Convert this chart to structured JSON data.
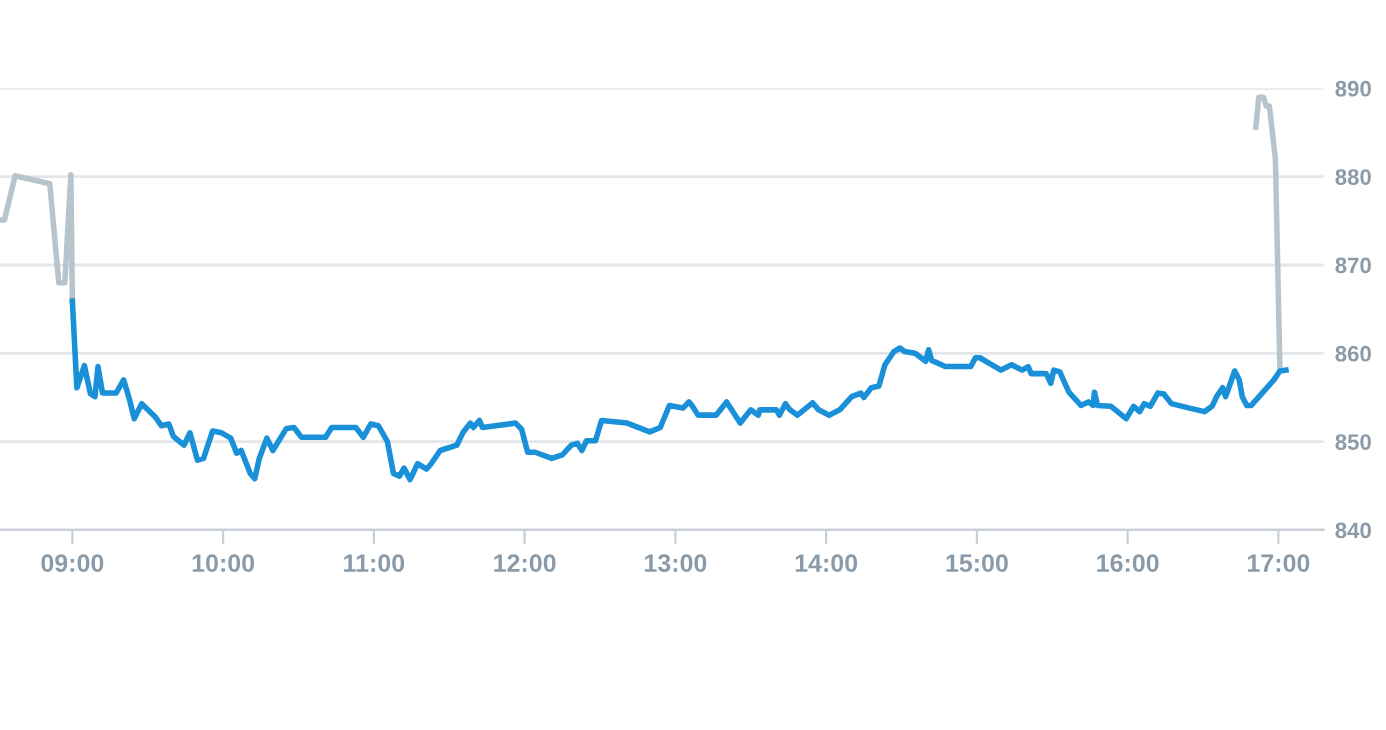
{
  "chart_data": {
    "type": "line",
    "series": [
      {
        "color": "#b8c4cc",
        "x": [
          8.52,
          8.55,
          8.62,
          8.85,
          8.91,
          8.95,
          8.99,
          9.0,
          null,
          16.85,
          16.87,
          16.9,
          16.92,
          16.94,
          16.98,
          17.01
        ],
        "values": [
          875.1,
          875.1,
          880.1,
          879.2,
          868.0,
          868.0,
          880.2,
          865.9,
          null,
          885.6,
          889.0,
          889.0,
          888.0,
          888.0,
          882.0,
          858.3
        ]
      },
      {
        "color": "#1a90d8",
        "x": [
          9.0,
          9.03,
          9.08,
          9.12,
          9.15,
          9.17,
          9.2,
          9.29,
          9.34,
          9.38,
          9.41,
          9.46,
          9.55,
          9.59,
          9.64,
          9.67,
          9.74,
          9.78,
          9.83,
          9.87,
          9.93,
          9.99,
          10.05,
          10.09,
          10.12,
          10.18,
          10.21,
          10.24,
          10.29,
          10.33,
          10.42,
          10.47,
          10.52,
          10.68,
          10.72,
          10.88,
          10.93,
          10.98,
          11.03,
          11.09,
          11.13,
          11.17,
          11.2,
          11.24,
          11.29,
          11.35,
          11.38,
          11.44,
          11.55,
          11.59,
          11.64,
          11.66,
          11.7,
          11.72,
          11.94,
          11.98,
          12.02,
          12.07,
          12.18,
          12.25,
          12.31,
          12.35,
          12.38,
          12.41,
          12.47,
          12.51,
          12.68,
          12.83,
          12.9,
          12.96,
          13.05,
          13.09,
          13.11,
          13.15,
          13.27,
          13.34,
          13.43,
          13.5,
          13.55,
          13.56,
          13.67,
          13.69,
          13.73,
          13.76,
          13.81,
          13.91,
          13.95,
          14.02,
          14.09,
          14.17,
          14.23,
          14.25,
          14.3,
          14.35,
          14.39,
          14.45,
          14.49,
          14.52,
          14.59,
          14.66,
          14.68,
          14.7,
          14.79,
          14.96,
          14.99,
          15.02,
          15.1,
          15.16,
          15.23,
          15.3,
          15.34,
          15.36,
          15.46,
          15.49,
          15.51,
          15.55,
          15.61,
          15.69,
          15.74,
          15.77,
          15.78,
          15.8,
          15.89,
          15.99,
          16.04,
          16.08,
          16.11,
          16.15,
          16.2,
          16.24,
          16.29,
          16.41,
          16.51,
          16.56,
          16.59,
          16.63,
          16.65,
          16.71,
          16.74,
          16.76,
          16.79,
          16.82,
          16.97,
          17.01,
          17.05
        ],
        "values": [
          865.9,
          856.1,
          858.6,
          855.4,
          855.1,
          858.5,
          855.5,
          855.5,
          857.0,
          854.7,
          852.6,
          854.3,
          852.8,
          851.8,
          852.0,
          850.6,
          849.6,
          851.0,
          847.9,
          848.1,
          851.2,
          851.0,
          850.4,
          848.7,
          849.0,
          846.4,
          845.8,
          848.1,
          850.4,
          849.0,
          851.5,
          851.6,
          850.5,
          850.5,
          851.6,
          851.6,
          850.5,
          852.0,
          851.8,
          850.0,
          846.4,
          846.1,
          847.0,
          845.7,
          847.5,
          846.9,
          847.5,
          849.0,
          849.6,
          851.0,
          852.1,
          851.6,
          852.4,
          851.6,
          852.1,
          851.4,
          848.8,
          848.8,
          848.1,
          848.5,
          849.6,
          849.8,
          849.0,
          850.1,
          850.1,
          852.4,
          852.1,
          851.1,
          851.6,
          854.1,
          853.8,
          854.5,
          854.1,
          853.0,
          853.0,
          854.5,
          852.1,
          853.6,
          853.0,
          853.6,
          853.6,
          853.0,
          854.3,
          853.6,
          853.0,
          854.4,
          853.6,
          853.0,
          853.6,
          855.1,
          855.5,
          855.0,
          856.1,
          856.3,
          858.7,
          860.2,
          860.6,
          860.2,
          860.0,
          859.1,
          860.4,
          859.2,
          858.5,
          858.5,
          859.5,
          859.5,
          858.7,
          858.1,
          858.7,
          858.1,
          858.5,
          857.7,
          857.7,
          856.6,
          858.1,
          857.9,
          855.6,
          854.1,
          854.5,
          854.1,
          855.6,
          854.1,
          854.0,
          852.6,
          854.0,
          853.4,
          854.3,
          854.0,
          855.5,
          855.4,
          854.3,
          853.8,
          853.4,
          854.0,
          855.1,
          856.1,
          855.1,
          858.0,
          857.0,
          855.1,
          854.1,
          854.1,
          857.0,
          858.0,
          858.1
        ]
      }
    ],
    "xlim": [
      8.52,
      17.3
    ],
    "xticks": [
      {
        "value": 9,
        "label": "09:00"
      },
      {
        "value": 10,
        "label": "10:00"
      },
      {
        "value": 11,
        "label": "11:00"
      },
      {
        "value": 12,
        "label": "12:00"
      },
      {
        "value": 13,
        "label": "13:00"
      },
      {
        "value": 14,
        "label": "14:00"
      },
      {
        "value": 15,
        "label": "15:00"
      },
      {
        "value": 16,
        "label": "16:00"
      },
      {
        "value": 17,
        "label": "17:00"
      }
    ],
    "ylim": [
      840,
      890
    ],
    "yticks": [
      840,
      850,
      860,
      870,
      880,
      890
    ],
    "grid": "y",
    "marker": "none",
    "line_style": "solid"
  }
}
